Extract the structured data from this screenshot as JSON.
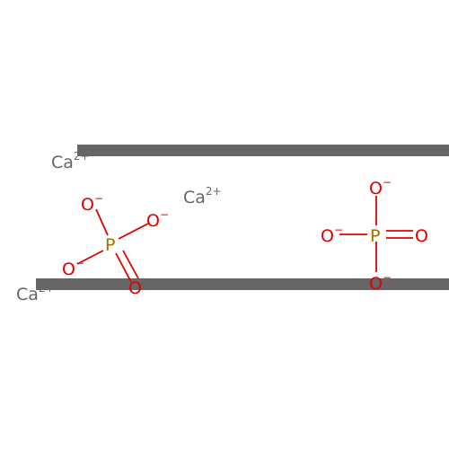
{
  "figure": {
    "type": "chemical-structure",
    "colors": {
      "calcium": "#666666",
      "oxygen": "#e00000",
      "phosphorus": "#a07000",
      "bar": "#666666"
    }
  },
  "calcium_ions": [
    {
      "symbol": "Ca",
      "charge": "2+"
    },
    {
      "symbol": "Ca",
      "charge": "2+"
    },
    {
      "symbol": "Ca",
      "charge": "2+"
    }
  ],
  "phosphates": [
    {
      "central": "P",
      "oxygens": [
        {
          "symbol": "O",
          "charge": "−",
          "bond": "single"
        },
        {
          "symbol": "O",
          "charge": "−",
          "bond": "single"
        },
        {
          "symbol": "O",
          "charge": "−",
          "bond": "single"
        },
        {
          "symbol": "O",
          "charge": "",
          "bond": "double"
        }
      ]
    },
    {
      "central": "P",
      "oxygens": [
        {
          "symbol": "O",
          "charge": "−",
          "bond": "single"
        },
        {
          "symbol": "O",
          "charge": "−",
          "bond": "single"
        },
        {
          "symbol": "O",
          "charge": "−",
          "bond": "single"
        },
        {
          "symbol": "O",
          "charge": "",
          "bond": "double"
        }
      ]
    }
  ]
}
